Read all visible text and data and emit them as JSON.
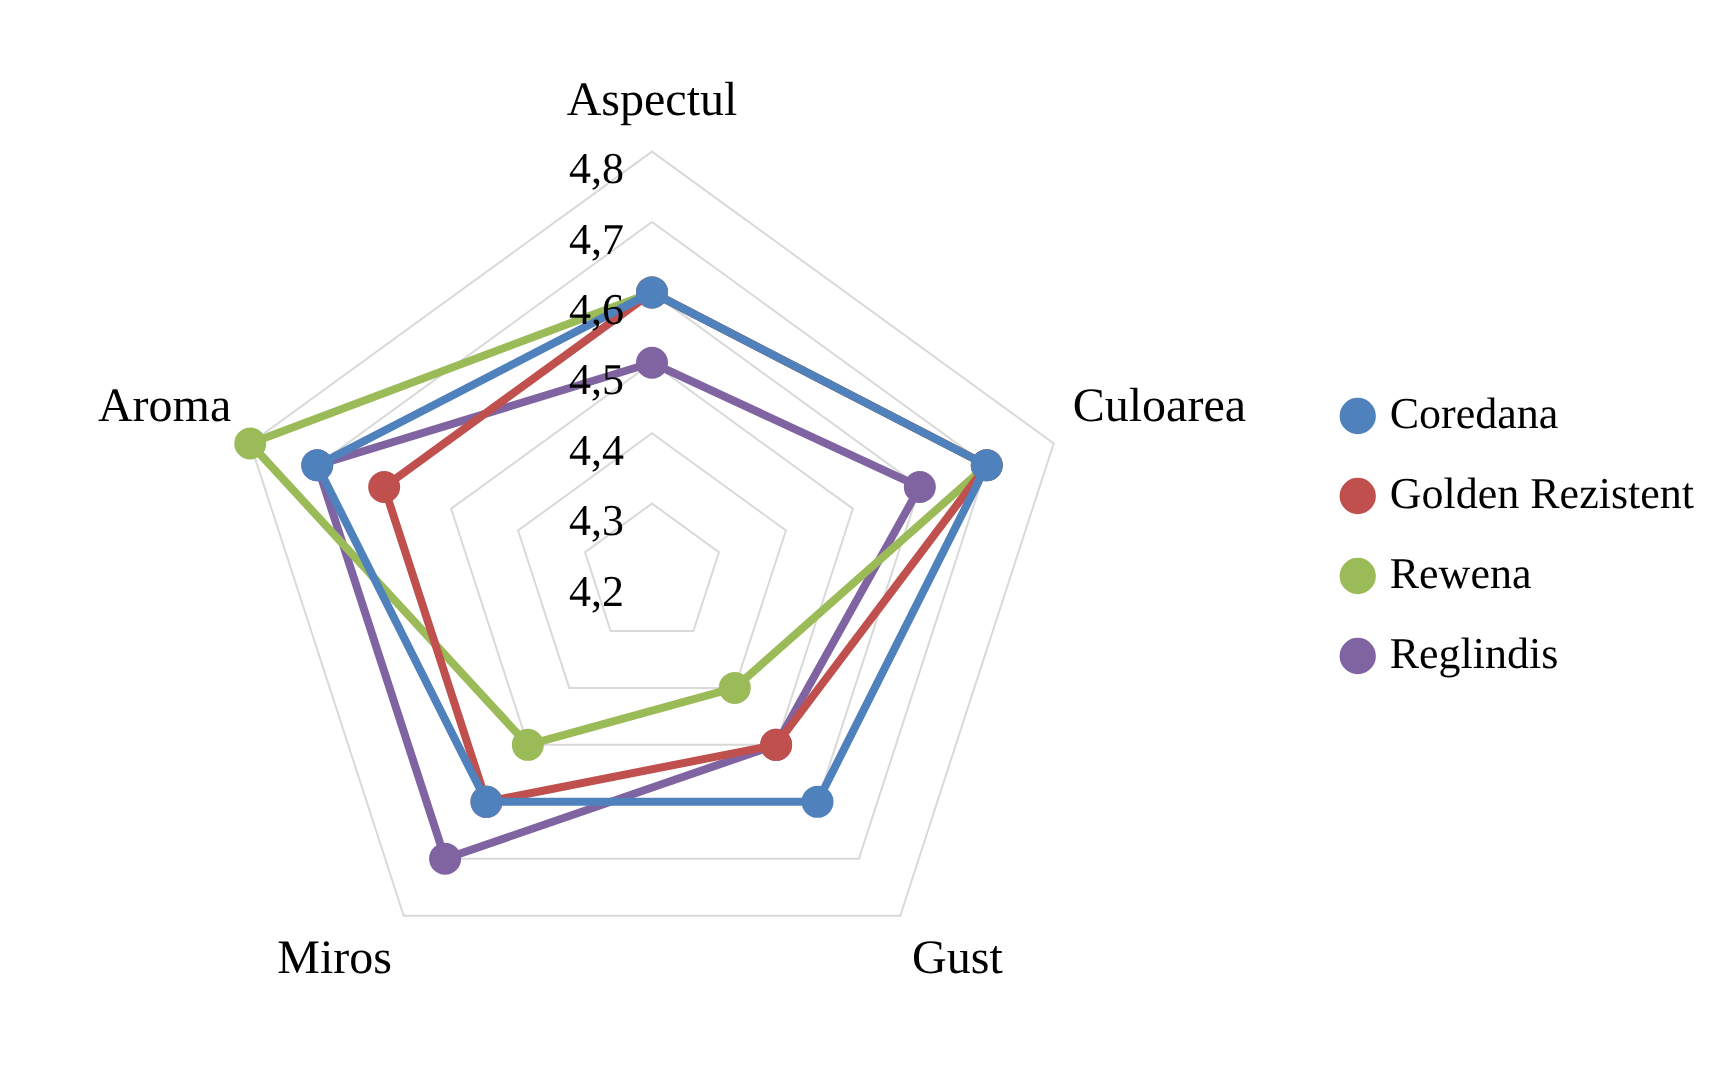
{
  "chart_data": {
    "type": "radar",
    "categories": [
      "Aspectul",
      "Culoarea",
      "Gust",
      "Miros",
      "Aroma"
    ],
    "series": [
      {
        "name": "Coredana",
        "color": "#4f81bd",
        "values": [
          4.6,
          4.7,
          4.6,
          4.6,
          4.7
        ]
      },
      {
        "name": "Golden Rezistent",
        "color": "#c0504d",
        "values": [
          4.6,
          4.7,
          4.5,
          4.6,
          4.6
        ]
      },
      {
        "name": "Rewena",
        "color": "#9bbb59",
        "values": [
          4.6,
          4.7,
          4.4,
          4.5,
          4.8
        ]
      },
      {
        "name": "Reglindis",
        "color": "#8064a2",
        "values": [
          4.5,
          4.6,
          4.5,
          4.7,
          4.7
        ]
      }
    ],
    "ylim": [
      4.2,
      4.8
    ],
    "yticks": [
      {
        "value": 4.2,
        "label": "4,2"
      },
      {
        "value": 4.3,
        "label": "4,3"
      },
      {
        "value": 4.4,
        "label": "4,4"
      },
      {
        "value": 4.5,
        "label": "4,5"
      },
      {
        "value": 4.6,
        "label": "4,6"
      },
      {
        "value": 4.7,
        "label": "4,7"
      },
      {
        "value": 4.8,
        "label": "4,8"
      }
    ],
    "grid": true,
    "legend": "right",
    "marker": "circle",
    "line_style": "solid"
  }
}
